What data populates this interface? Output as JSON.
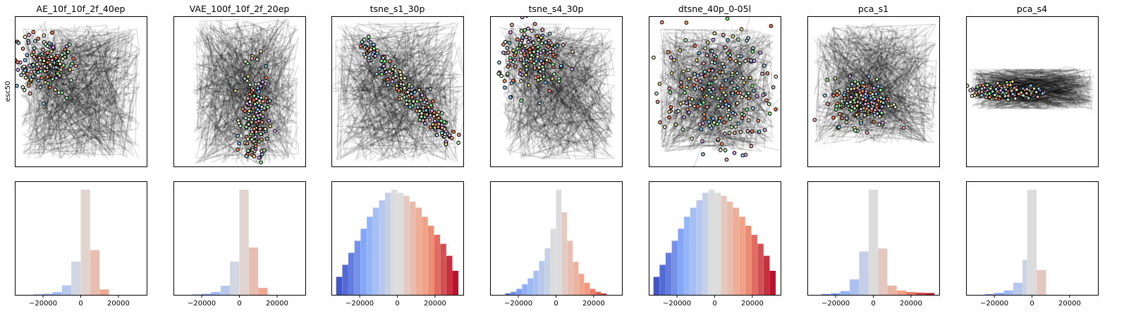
{
  "figure": {
    "row_labels": [
      "esc50",
      ""
    ],
    "titles": [
      "AE_10f_10f_2f_40ep",
      "VAE_100f_10f_2f_20ep",
      "tsne_s1_30p",
      "tsne_s4_30p",
      "dtsne_40p_0-05l",
      "pca_s1",
      "pca_s4"
    ]
  },
  "chart_data": [
    {
      "type": "scatter",
      "panel": "AE_10f_10f_2f_40ep",
      "title": "AE_10f_10f_2f_40ep",
      "ylabel": "esc50",
      "ticks": "none",
      "trajectory_lines": true,
      "xlim": [
        0,
        1
      ],
      "ylim": [
        0,
        1
      ],
      "cluster": {
        "cx": 0.22,
        "cy": 0.68,
        "sx": 0.12,
        "sy": 0.09,
        "n": 170
      },
      "line_span": {
        "x": [
          0.05,
          0.95
        ],
        "y": [
          0.05,
          0.95
        ]
      }
    },
    {
      "type": "scatter",
      "panel": "VAE_100f_10f_2f_20ep",
      "title": "VAE_100f_10f_2f_20ep",
      "ticks": "none",
      "trajectory_lines": true,
      "xlim": [
        0,
        1
      ],
      "ylim": [
        0,
        1
      ],
      "cluster": {
        "cx": 0.62,
        "cy": 0.3,
        "sx": 0.05,
        "sy": 0.16,
        "n": 170
      },
      "line_span": {
        "x": [
          0.15,
          0.95
        ],
        "y": [
          0.02,
          0.98
        ]
      }
    },
    {
      "type": "scatter",
      "panel": "tsne_s1_30p",
      "title": "tsne_s1_30p",
      "ticks": "none",
      "trajectory_lines": true,
      "xlim": [
        0,
        1
      ],
      "ylim": [
        0,
        1
      ],
      "cluster": {
        "cx": 0.55,
        "cy": 0.55,
        "sx": 0.3,
        "sy": 0.04,
        "n": 200,
        "diagonal": true
      },
      "line_span": {
        "x": [
          0.03,
          0.97
        ],
        "y": [
          0.03,
          0.97
        ]
      }
    },
    {
      "type": "scatter",
      "panel": "tsne_s4_30p",
      "title": "tsne_s4_30p",
      "ticks": "none",
      "trajectory_lines": true,
      "xlim": [
        0,
        1
      ],
      "ylim": [
        0,
        1
      ],
      "cluster": {
        "cx": 0.33,
        "cy": 0.72,
        "sx": 0.13,
        "sy": 0.11,
        "n": 170
      },
      "line_span": {
        "x": [
          0.1,
          0.95
        ],
        "y": [
          0.05,
          0.95
        ]
      }
    },
    {
      "type": "scatter",
      "panel": "dtsne_40p_0-05l",
      "title": "dtsne_40p_0-05l",
      "ticks": "none",
      "trajectory_lines": true,
      "xlim": [
        0,
        1
      ],
      "ylim": [
        0,
        1
      ],
      "cluster": {
        "cx": 0.52,
        "cy": 0.5,
        "sx": 0.2,
        "sy": 0.2,
        "n": 220
      },
      "line_span": {
        "x": [
          0.08,
          0.95
        ],
        "y": [
          0.1,
          0.92
        ]
      }
    },
    {
      "type": "scatter",
      "panel": "pca_s1",
      "title": "pca_s1",
      "ticks": "none",
      "trajectory_lines": true,
      "xlim": [
        0,
        1
      ],
      "ylim": [
        0,
        1
      ],
      "cluster": {
        "cx": 0.42,
        "cy": 0.43,
        "sx": 0.11,
        "sy": 0.08,
        "n": 180
      },
      "line_span": {
        "x": [
          0.05,
          0.98
        ],
        "y": [
          0.15,
          0.95
        ]
      }
    },
    {
      "type": "scatter",
      "panel": "pca_s4",
      "title": "pca_s4",
      "ticks": "none",
      "trajectory_lines": true,
      "xlim": [
        0,
        1
      ],
      "ylim": [
        0,
        1
      ],
      "cluster": {
        "cx": 0.3,
        "cy": 0.5,
        "sx": 0.13,
        "sy": 0.025,
        "n": 160
      },
      "line_span": {
        "x": [
          0.05,
          0.97
        ],
        "y": [
          0.38,
          0.65
        ]
      }
    },
    {
      "type": "bar",
      "subtype": "histogram",
      "panel": "AE_10f_10f_2f_40ep",
      "xlim": [
        -35000,
        35000
      ],
      "xticks": [
        -20000,
        0,
        20000
      ],
      "xticklabels": [
        "−20000",
        "0",
        "20000"
      ],
      "bin_edges": [
        -25000,
        -20000,
        -15000,
        -10000,
        -5000,
        0,
        5000,
        10000,
        15000
      ],
      "counts": [
        1,
        3,
        8,
        28,
        98,
        310,
        132,
        16
      ]
    },
    {
      "type": "bar",
      "subtype": "histogram",
      "panel": "VAE_100f_10f_2f_20ep",
      "xlim": [
        -35000,
        35000
      ],
      "xticks": [
        -20000,
        0,
        20000
      ],
      "xticklabels": [
        "−20000",
        "0",
        "20000"
      ],
      "bin_edges": [
        -25000,
        -20000,
        -15000,
        -10000,
        -5000,
        0,
        5000,
        10000,
        15000
      ],
      "counts": [
        1,
        3,
        8,
        26,
        95,
        300,
        135,
        20
      ]
    },
    {
      "type": "bar",
      "subtype": "histogram",
      "panel": "tsne_s1_30p",
      "xlim": [
        -35000,
        35000
      ],
      "xticks": [
        -20000,
        0,
        20000
      ],
      "xticklabels": [
        "−20000",
        "0",
        "20000"
      ],
      "bin_edges": [
        -32500,
        -29250,
        -26000,
        -22750,
        -19500,
        -16250,
        -13000,
        -9750,
        -6500,
        -3250,
        0,
        3250,
        6500,
        9750,
        13000,
        16250,
        19500,
        22750,
        26000,
        29250,
        32500
      ],
      "counts": [
        12,
        20,
        28,
        36,
        44,
        52,
        58,
        63,
        68,
        70,
        68,
        66,
        62,
        58,
        52,
        46,
        40,
        34,
        26,
        16
      ]
    },
    {
      "type": "bar",
      "subtype": "histogram",
      "panel": "tsne_s4_30p",
      "xlim": [
        -35000,
        35000
      ],
      "xticks": [
        -20000,
        0,
        20000
      ],
      "xticklabels": [
        "−20000",
        "0",
        "20000"
      ],
      "bin_edges": [
        -27000,
        -24000,
        -21000,
        -18000,
        -15000,
        -12000,
        -9000,
        -6000,
        -3000,
        0,
        3000,
        6000,
        9000,
        12000,
        15000,
        18000,
        21000,
        24000,
        27000
      ],
      "counts": [
        2,
        4,
        8,
        14,
        22,
        32,
        45,
        62,
        88,
        140,
        110,
        72,
        44,
        28,
        16,
        8,
        4,
        2
      ]
    },
    {
      "type": "bar",
      "subtype": "histogram",
      "panel": "dtsne_40p_0-05l",
      "xlim": [
        -35000,
        35000
      ],
      "xticks": [
        -20000,
        0,
        20000
      ],
      "xticklabels": [
        "−20000",
        "0",
        "20000"
      ],
      "bin_edges": [
        -32500,
        -29250,
        -26000,
        -22750,
        -19500,
        -16250,
        -13000,
        -9750,
        -6500,
        -3250,
        0,
        3250,
        6500,
        9750,
        13000,
        16250,
        19500,
        22750,
        26000,
        29250,
        32500
      ],
      "counts": [
        12,
        20,
        28,
        36,
        44,
        52,
        58,
        63,
        68,
        70,
        68,
        66,
        62,
        58,
        52,
        46,
        40,
        34,
        26,
        16
      ]
    },
    {
      "type": "bar",
      "subtype": "histogram",
      "panel": "pca_s1",
      "xlim": [
        -35000,
        35000
      ],
      "xticks": [
        -20000,
        0,
        20000
      ],
      "xticklabels": [
        "−20000",
        "0",
        "20000"
      ],
      "bin_edges": [
        -27500,
        -22500,
        -17500,
        -12500,
        -7500,
        -2500,
        2500,
        7500,
        12500,
        17500,
        22500,
        27500,
        32500
      ],
      "counts": [
        2,
        5,
        12,
        50,
        140,
        340,
        150,
        30,
        14,
        9,
        7,
        6
      ]
    },
    {
      "type": "bar",
      "subtype": "histogram",
      "panel": "pca_s4",
      "xlim": [
        -35000,
        35000
      ],
      "xticks": [
        -20000,
        0,
        20000
      ],
      "xticklabels": [
        "−20000",
        "0",
        "20000"
      ],
      "bin_edges": [
        -25000,
        -20000,
        -15000,
        -10000,
        -5000,
        -2500,
        2500,
        7500
      ],
      "counts": [
        2,
        6,
        14,
        38,
        110,
        330,
        78
      ]
    }
  ],
  "colors": {
    "point_palette": [
      "#ff7f50",
      "#ffa07a",
      "#f0e68c",
      "#98fb98",
      "#87cefa",
      "#e0b0ff",
      "#fffacd",
      "#ffb6c1",
      "#add8e6",
      "#c1ffc1"
    ],
    "point_edge": "#000000",
    "line": "#000000",
    "hist_colormap": "coolwarm",
    "hist_center": "#dcdcdc"
  }
}
